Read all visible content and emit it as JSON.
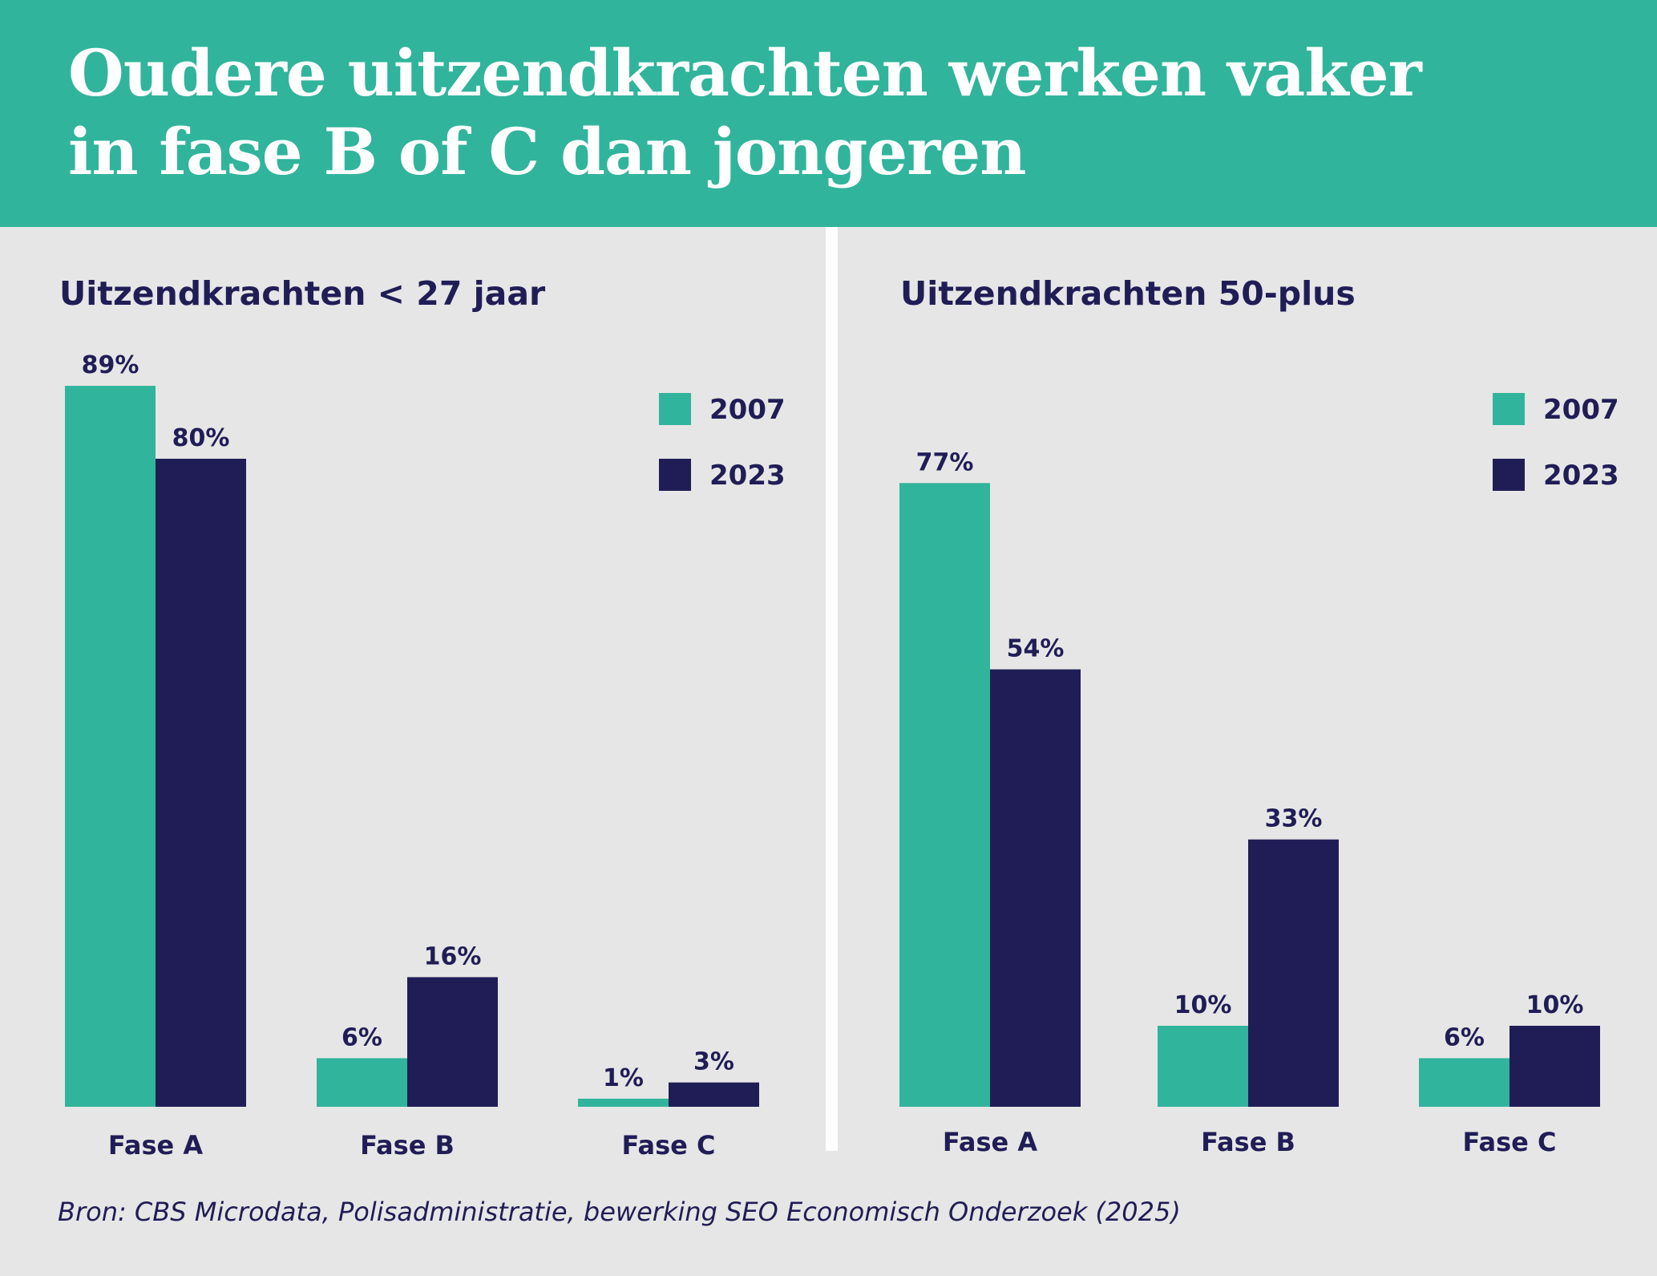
{
  "title": {
    "line1": "Oudere uitzendkrachten werken vaker",
    "line2": "in fase B of C dan jongeren"
  },
  "colors": {
    "header_bg": "#31b49c",
    "page_bg": "#e6e6e6",
    "series_2007": "#31b49c",
    "series_2023": "#201d56",
    "text": "#201d56"
  },
  "chart_data": [
    {
      "type": "bar",
      "title": "Uitzendkrachten < 27 jaar",
      "categories": [
        "Fase A",
        "Fase B",
        "Fase C"
      ],
      "series": [
        {
          "name": "2007",
          "values": [
            89,
            6,
            1
          ],
          "labels": [
            "89%",
            "6%",
            "1%"
          ]
        },
        {
          "name": "2023",
          "values": [
            80,
            16,
            3
          ],
          "labels": [
            "80%",
            "16%",
            "3%"
          ]
        }
      ],
      "ylim": [
        0,
        100
      ],
      "unit": "%",
      "grid": false,
      "legend_position": "top-right"
    },
    {
      "type": "bar",
      "title": "Uitzendkrachten 50-plus",
      "categories": [
        "Fase A",
        "Fase B",
        "Fase C"
      ],
      "series": [
        {
          "name": "2007",
          "values": [
            77,
            10,
            6
          ],
          "labels": [
            "77%",
            "10%",
            "6%"
          ]
        },
        {
          "name": "2023",
          "values": [
            54,
            33,
            10
          ],
          "labels": [
            "54%",
            "33%",
            "10%"
          ]
        }
      ],
      "ylim": [
        0,
        100
      ],
      "unit": "%",
      "grid": false,
      "legend_position": "top-right"
    }
  ],
  "source": "Bron: CBS Microdata, Polisadministratie, bewerking SEO Economisch Onderzoek (2025)"
}
